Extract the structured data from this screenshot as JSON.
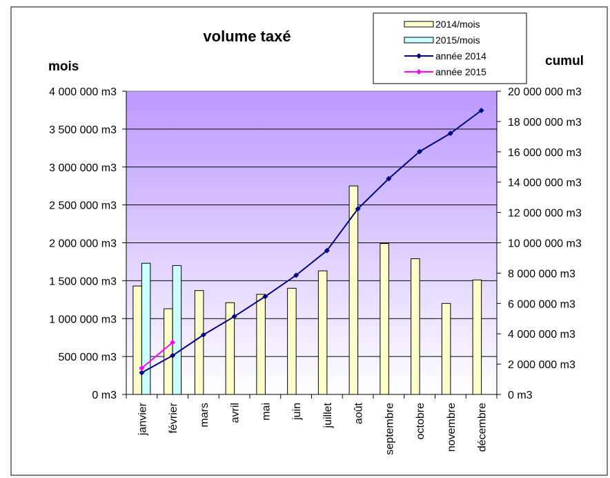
{
  "chart_data": {
    "type": "bar",
    "title": "volume taxé",
    "ylabel_left": "mois",
    "ylabel_right": "cumul",
    "categories": [
      "janvier",
      "février",
      "mars",
      "avril",
      "mai",
      "juin",
      "juillet",
      "août",
      "septembre",
      "octobre",
      "novembre",
      "décembre"
    ],
    "y_left": {
      "min": 0,
      "max": 4000000,
      "step": 500000,
      "tick_labels": [
        "0 m3",
        "500 000 m3",
        "1 000 000 m3",
        "1 500 000 m3",
        "2 000 000 m3",
        "2 500 000 m3",
        "3 000 000 m3",
        "3 500 000 m3",
        "4 000 000 m3"
      ]
    },
    "y_right": {
      "min": 0,
      "max": 20000000,
      "step": 2000000,
      "tick_labels": [
        "0 m3",
        "2 000 000 m3",
        "4 000 000 m3",
        "6 000 000 m3",
        "8 000 000 m3",
        "10 000 000 m3",
        "12 000 000 m3",
        "14 000 000 m3",
        "16 000 000 m3",
        "18 000 000 m3",
        "20 000 000 m3"
      ]
    },
    "bar_series": [
      {
        "name": "2014/mois",
        "axis": "left",
        "color": "#ffffcc",
        "values": [
          1430000,
          1130000,
          1370000,
          1210000,
          1320000,
          1400000,
          1630000,
          2750000,
          1990000,
          1790000,
          1200000,
          1510000
        ]
      },
      {
        "name": "2015/mois",
        "axis": "left",
        "color": "#ccffff",
        "values": [
          1730000,
          1700000,
          null,
          null,
          null,
          null,
          null,
          null,
          null,
          null,
          null,
          null
        ]
      }
    ],
    "line_series": [
      {
        "name": "année 2014",
        "axis": "right",
        "color": "#000080",
        "marker": "diamond",
        "values": [
          1430000,
          2560000,
          3930000,
          5140000,
          6460000,
          7860000,
          9490000,
          12240000,
          14230000,
          16020000,
          17220000,
          18730000
        ]
      },
      {
        "name": "année 2015",
        "axis": "right",
        "color": "#ff00ff",
        "marker": "diamond",
        "values": [
          1730000,
          3430000,
          null,
          null,
          null,
          null,
          null,
          null,
          null,
          null,
          null,
          null
        ]
      }
    ],
    "plot_background": [
      "#bb99ff",
      "#ffffff"
    ],
    "grid": true,
    "legend_position": "top-right"
  }
}
